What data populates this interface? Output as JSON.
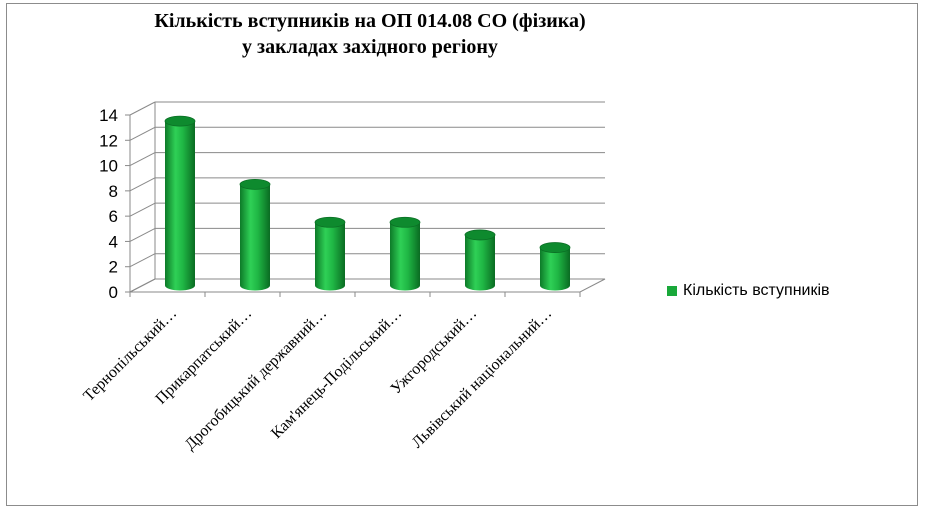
{
  "chart_data": {
    "type": "bar",
    "title": "Кількість вступників на ОП 014.08 СО (фізика) у закладах західного регіону",
    "title_lines": [
      "Кількість вступників на ОП 014.08 СО (фізика)",
      "у закладах західного регіону"
    ],
    "categories": [
      "Тернопільський…",
      "Прикарпатський…",
      "Дрогобицький державний…",
      "Кам'янець-Подільський…",
      "Ужгородський…",
      "Львівський національний…"
    ],
    "series": [
      {
        "name": "Кількість вступників",
        "values": [
          13,
          8,
          5,
          5,
          4,
          3
        ],
        "color": "#19a83a"
      }
    ],
    "ylim": [
      0,
      14
    ],
    "yticks": [
      0,
      2,
      4,
      6,
      8,
      10,
      12,
      14
    ],
    "grid": true,
    "legend_position": "right",
    "style": "3d-cylinder"
  }
}
